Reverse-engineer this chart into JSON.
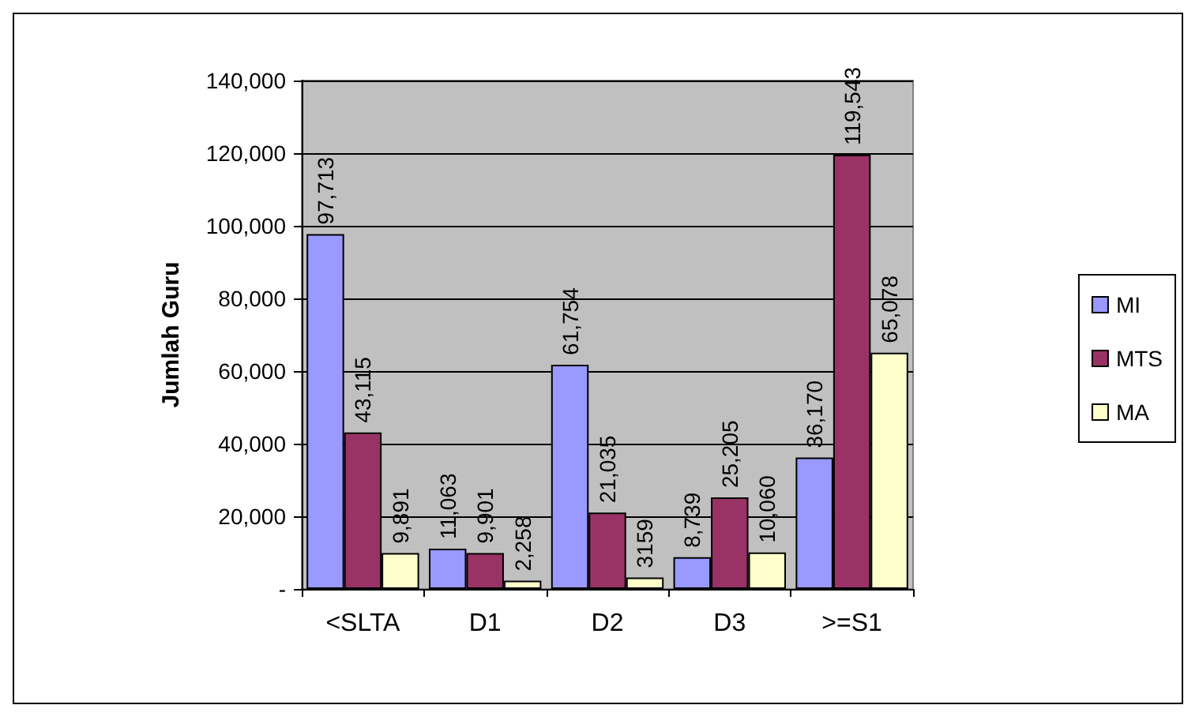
{
  "chart_data": {
    "type": "bar",
    "ylabel": "Jumlah Guru",
    "categories": [
      "<SLTA",
      "D1",
      "D2",
      "D3",
      ">=S1"
    ],
    "series": [
      {
        "name": "MI",
        "color": "#9999ff",
        "values": [
          97713,
          11063,
          61754,
          8739,
          36170
        ],
        "value_labels": [
          "97,713",
          "11,063",
          "61,754",
          "8,739",
          "36,170"
        ]
      },
      {
        "name": "MTS",
        "color": "#993366",
        "values": [
          43115,
          9901,
          21035,
          25205,
          119543
        ],
        "value_labels": [
          "43,115",
          "9,901",
          "21,035",
          "25,205",
          "119,543"
        ]
      },
      {
        "name": "MA",
        "color": "#ffffcc",
        "values": [
          9891,
          2258,
          3159,
          10060,
          65078
        ],
        "value_labels": [
          "9,891",
          "2,258",
          "3159",
          "10,060",
          "65,078"
        ]
      }
    ],
    "ylim": [
      0,
      140000
    ],
    "yticks": [
      {
        "value": 0,
        "label": "-"
      },
      {
        "value": 20000,
        "label": "20,000"
      },
      {
        "value": 40000,
        "label": "40,000"
      },
      {
        "value": 60000,
        "label": "60,000"
      },
      {
        "value": 80000,
        "label": "80,000"
      },
      {
        "value": 100000,
        "label": "100,000"
      },
      {
        "value": 120000,
        "label": "120,000"
      },
      {
        "value": 140000,
        "label": "140,000"
      }
    ],
    "grid": "y",
    "legend": "right"
  }
}
